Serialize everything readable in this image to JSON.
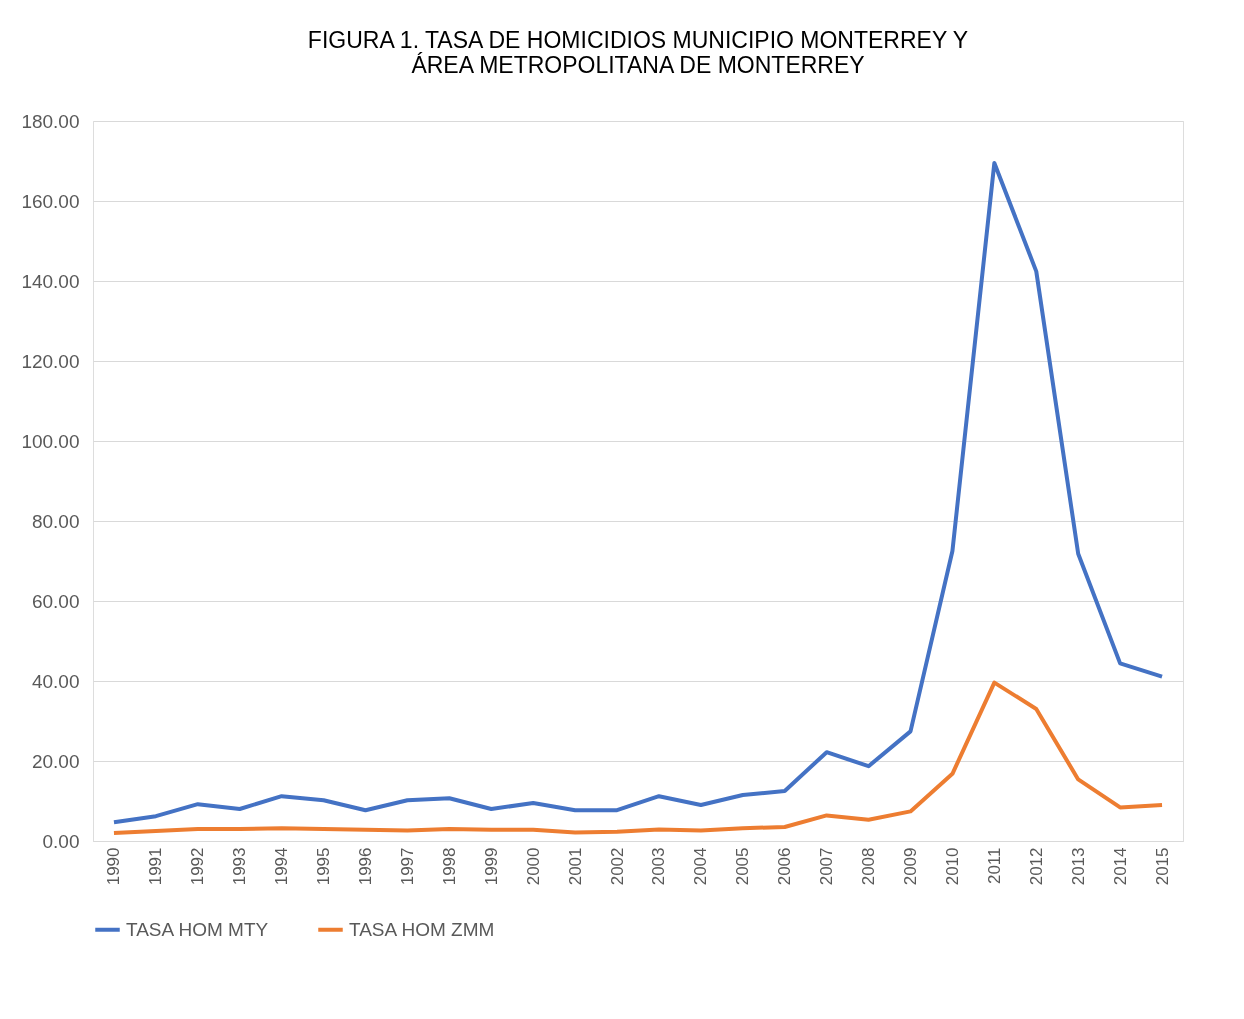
{
  "chart_data": {
    "type": "line",
    "title": [
      "FIGURA 1. TASA DE HOMICIDIOS MUNICIPIO MONTERREY Y",
      "ÁREA METROPOLITANA DE MONTERREY"
    ],
    "categories": [
      "1990",
      "1991",
      "1992",
      "1993",
      "1994",
      "1995",
      "1996",
      "1997",
      "1998",
      "1999",
      "2000",
      "2001",
      "2002",
      "2003",
      "2004",
      "2005",
      "2006",
      "2007",
      "2008",
      "2009",
      "2010",
      "2011",
      "2012",
      "2013",
      "2014",
      "2015"
    ],
    "series": [
      {
        "name": "TASA HOM MTY",
        "color": "#4472c4",
        "values": [
          4.7,
          6.2,
          9.2,
          8.0,
          11.2,
          10.2,
          7.7,
          10.2,
          10.7,
          8.0,
          9.5,
          7.7,
          7.7,
          11.2,
          9.0,
          11.5,
          12.5,
          22.2,
          18.7,
          27.4,
          72.5,
          169.5,
          142.4,
          71.8,
          44.4,
          41.1
        ]
      },
      {
        "name": "TASA HOM ZMM",
        "color": "#ed7d31",
        "values": [
          2.0,
          2.5,
          3.0,
          3.0,
          3.2,
          3.0,
          2.8,
          2.6,
          3.0,
          2.8,
          2.8,
          2.1,
          2.3,
          2.9,
          2.6,
          3.2,
          3.5,
          6.4,
          5.3,
          7.4,
          16.8,
          39.6,
          33.0,
          15.4,
          8.4,
          9.0
        ]
      }
    ],
    "ylim": [
      0,
      180
    ],
    "yticks": [
      {
        "value": 0,
        "label": "0.00"
      },
      {
        "value": 20,
        "label": "20.00"
      },
      {
        "value": 40,
        "label": "40.00"
      },
      {
        "value": 60,
        "label": "60.00"
      },
      {
        "value": 80,
        "label": "80.00"
      },
      {
        "value": 100,
        "label": "100.00"
      },
      {
        "value": 120,
        "label": "120.00"
      },
      {
        "value": 140,
        "label": "140.00"
      },
      {
        "value": 160,
        "label": "160.00"
      },
      {
        "value": 180,
        "label": "180.00"
      }
    ],
    "grid": "y",
    "legend": "bottom",
    "marker": "none",
    "line_style": "solid"
  }
}
